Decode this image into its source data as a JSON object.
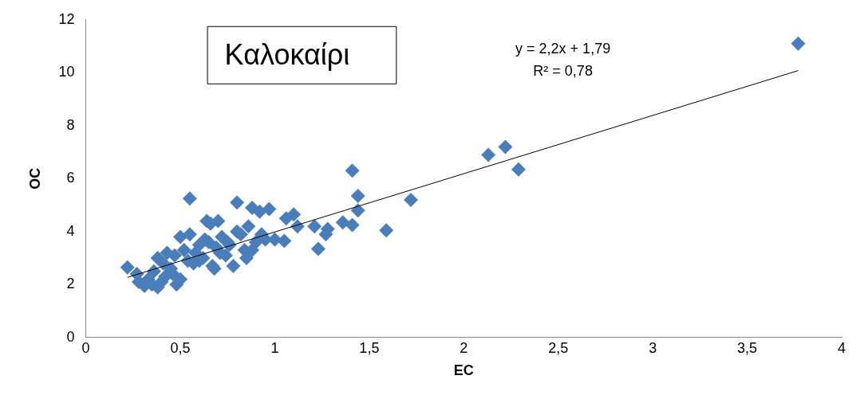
{
  "chart_data": {
    "type": "scatter",
    "title": "Καλοκαίρι",
    "xlabel": "EC",
    "ylabel": "OC",
    "xlim": [
      0,
      4
    ],
    "xticks": [
      0,
      {
        "value": 0.5,
        "label": "0,5"
      },
      1,
      {
        "value": 1.5,
        "label": "1,5"
      },
      2,
      {
        "value": 2.5,
        "label": "2,5"
      },
      3,
      {
        "value": 3.5,
        "label": "3,5"
      },
      4
    ],
    "ylim": [
      0,
      12
    ],
    "yticks": [
      0,
      2,
      4,
      6,
      8,
      10,
      12
    ],
    "grid": false,
    "legend": false,
    "annotations": [
      "y = 2,2x + 1,79",
      "R² = 0,78"
    ],
    "series": [
      {
        "marker": "diamond",
        "color": "#4a7ebb",
        "x": [
          3.77,
          2.13,
          2.22,
          2.29,
          1.72,
          1.59,
          1.41,
          1.44,
          1.44,
          1.41,
          1.36,
          1.27,
          1.28,
          1.23,
          1.21,
          1.1,
          1.12,
          1.06,
          1.05,
          1.0,
          0.97,
          0.92,
          0.88,
          0.8,
          0.55,
          0.64,
          0.7,
          0.22,
          0.27,
          0.28,
          0.31,
          0.38,
          0.38,
          0.43,
          0.48,
          0.5,
          0.55,
          0.33,
          0.36,
          0.41,
          0.45,
          0.47,
          0.52,
          0.54,
          0.58,
          0.6,
          0.62,
          0.65,
          0.67,
          0.69,
          0.72,
          0.74,
          0.76,
          0.78,
          0.82,
          0.84,
          0.86,
          0.9,
          0.93,
          0.95,
          0.42,
          0.46,
          0.5,
          0.57,
          0.63,
          0.68,
          0.71,
          0.75,
          0.8,
          0.85,
          0.35,
          0.4,
          0.6,
          0.66,
          0.88
        ],
        "values": [
          11.1,
          6.9,
          7.2,
          6.35,
          5.2,
          4.05,
          6.3,
          5.35,
          4.8,
          4.25,
          4.35,
          3.9,
          4.1,
          3.35,
          4.2,
          4.65,
          4.2,
          4.5,
          3.65,
          3.7,
          4.85,
          4.75,
          4.9,
          5.1,
          5.25,
          4.4,
          4.4,
          2.65,
          2.4,
          2.1,
          1.95,
          1.9,
          3.0,
          3.2,
          2.0,
          3.8,
          3.9,
          2.2,
          2.5,
          2.8,
          2.6,
          3.1,
          3.3,
          2.9,
          3.2,
          3.5,
          3.0,
          3.6,
          2.7,
          3.4,
          3.8,
          3.1,
          3.5,
          2.7,
          3.9,
          3.3,
          4.2,
          3.6,
          3.9,
          3.7,
          2.3,
          2.4,
          2.2,
          2.8,
          3.7,
          2.6,
          3.2,
          3.6,
          4.0,
          3.0,
          2.0,
          2.1,
          2.9,
          4.3,
          3.3
        ]
      },
      {
        "type": "line",
        "color": "#000000",
        "x": [
          0.22,
          3.77
        ],
        "values": [
          2.27,
          10.08
        ]
      }
    ]
  }
}
